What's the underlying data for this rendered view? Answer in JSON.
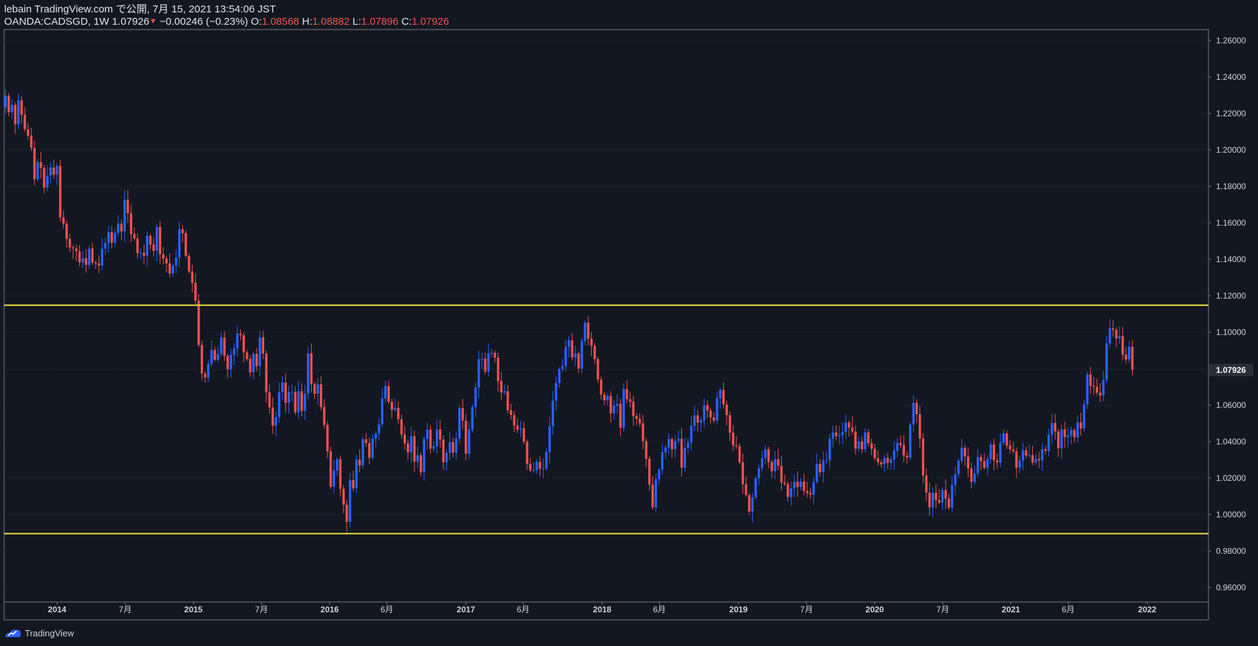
{
  "header": {
    "published": "lebain TradingView.com で公開, 7月 15, 2021 13:54:06 JST",
    "symbol": "OANDA:CADSGD, 1W",
    "last": "1.07926",
    "change": "−0.00246 (−0.23%)",
    "o_label": "O:",
    "o_value": "1.08568",
    "h_label": "H:",
    "h_value": "1.08882",
    "l_label": "L:",
    "l_value": "1.07896",
    "c_label": "C:",
    "c_value": "1.07926"
  },
  "footer": {
    "brand": "TradingView"
  },
  "colors": {
    "bg": "#131722",
    "up": "#2962ff",
    "down": "#ef5350",
    "level": "#f0e442",
    "border": "#787b86"
  },
  "chart_data": {
    "type": "candlestick",
    "symbol": "OANDA:CADSGD",
    "interval": "1W",
    "ylim": [
      0.952,
      1.266
    ],
    "y_ticks": [
      "1.26000",
      "1.24000",
      "1.22000",
      "1.20000",
      "1.18000",
      "1.16000",
      "1.14000",
      "1.12000",
      "1.10000",
      "1.08000",
      "1.06000",
      "1.04000",
      "1.02000",
      "1.00000",
      "0.98000",
      "0.96000"
    ],
    "x_ticks": [
      {
        "label": "2014",
        "t": 2013.99
      },
      {
        "label": "7月",
        "t": 2014.49
      },
      {
        "label": "2015",
        "t": 2014.99
      },
      {
        "label": "7月",
        "t": 2015.49
      },
      {
        "label": "2016",
        "t": 2015.99
      },
      {
        "label": "6月",
        "t": 2016.41
      },
      {
        "label": "2017",
        "t": 2016.99
      },
      {
        "label": "6月",
        "t": 2017.41
      },
      {
        "label": "2018",
        "t": 2017.99
      },
      {
        "label": "6月",
        "t": 2018.41
      },
      {
        "label": "2019",
        "t": 2018.99
      },
      {
        "label": "7月",
        "t": 2019.49
      },
      {
        "label": "2020",
        "t": 2019.99
      },
      {
        "label": "7月",
        "t": 2020.49
      },
      {
        "label": "2021",
        "t": 2020.99
      },
      {
        "label": "6月",
        "t": 2021.41
      },
      {
        "label": "2022",
        "t": 2021.99
      }
    ],
    "horizontal_levels": [
      1.1148,
      0.9895
    ],
    "last_price": 1.07926,
    "last_price_label": "1.07926",
    "weekly_closes": [
      1.2296,
      1.2207,
      1.2247,
      1.2141,
      1.2272,
      1.2193,
      1.2113,
      1.2078,
      1.2012,
      1.1839,
      1.1932,
      1.1902,
      1.1793,
      1.1858,
      1.1903,
      1.1865,
      1.1912,
      1.1629,
      1.1595,
      1.1512,
      1.1465,
      1.1459,
      1.1444,
      1.1383,
      1.1406,
      1.1369,
      1.1459,
      1.1382,
      1.1377,
      1.1366,
      1.1458,
      1.1489,
      1.1549,
      1.1491,
      1.1545,
      1.1595,
      1.1553,
      1.1726,
      1.1652,
      1.1538,
      1.1514,
      1.1433,
      1.1436,
      1.1419,
      1.1529,
      1.1481,
      1.1447,
      1.1577,
      1.1428,
      1.1404,
      1.1377,
      1.1322,
      1.1365,
      1.1409,
      1.1565,
      1.1543,
      1.1419,
      1.1333,
      1.1271,
      1.1173,
      1.093,
      1.0773,
      1.0751,
      1.0827,
      1.0903,
      1.0849,
      1.088,
      1.0971,
      1.087,
      1.0796,
      1.0876,
      1.0911,
      1.0992,
      1.0984,
      1.0889,
      1.0853,
      1.078,
      1.0881,
      1.0814,
      1.0972,
      1.0883,
      1.067,
      1.0587,
      1.0487,
      1.0534,
      1.0671,
      1.0724,
      1.0613,
      1.0672,
      1.0672,
      1.056,
      1.0676,
      1.0568,
      1.0663,
      1.0884,
      1.0715,
      1.0663,
      1.0714,
      1.0589,
      1.0491,
      1.0347,
      1.0152,
      1.0241,
      1.0303,
      1.0141,
      1.0053,
      0.996,
      1.0188,
      1.0144,
      1.0301,
      1.0269,
      1.0413,
      1.0392,
      1.0311,
      1.0416,
      1.0444,
      1.0494,
      1.0637,
      1.0704,
      1.0618,
      1.0573,
      1.0585,
      1.0522,
      1.0439,
      1.039,
      1.0341,
      1.0429,
      1.029,
      1.0325,
      1.0232,
      1.0414,
      1.0465,
      1.0361,
      1.0374,
      1.0466,
      1.0411,
      1.0286,
      1.0338,
      1.0396,
      1.0339,
      1.0416,
      1.0584,
      1.0515,
      1.0333,
      1.0466,
      1.0589,
      1.0696,
      1.0852,
      1.0855,
      1.0784,
      1.0884,
      1.0887,
      1.086,
      1.0732,
      1.0669,
      1.0676,
      1.0572,
      1.0546,
      1.0488,
      1.0466,
      1.0473,
      1.04,
      1.0278,
      1.0243,
      1.0244,
      1.0288,
      1.0251,
      1.0251,
      1.0343,
      1.0484,
      1.0624,
      1.0721,
      1.0797,
      1.0815,
      1.0919,
      1.0955,
      1.0862,
      1.0883,
      1.08,
      1.0952,
      1.1052,
      1.0964,
      1.0925,
      1.0852,
      1.074,
      1.0658,
      1.0627,
      1.065,
      1.0555,
      1.0597,
      1.0607,
      1.0476,
      1.0688,
      1.0632,
      1.0618,
      1.0539,
      1.0525,
      1.05,
      1.0402,
      1.0305,
      1.0163,
      1.0039,
      1.0194,
      1.0245,
      1.0341,
      1.0368,
      1.0414,
      1.0358,
      1.0404,
      1.0415,
      1.0257,
      1.0366,
      1.0394,
      1.0486,
      1.0544,
      1.0504,
      1.0517,
      1.0599,
      1.057,
      1.0532,
      1.0515,
      1.0639,
      1.0683,
      1.0603,
      1.0545,
      1.0449,
      1.0379,
      1.0374,
      1.0286,
      1.0166,
      1.0107,
      1.0016,
      1.0093,
      1.0199,
      1.0254,
      1.0309,
      1.0357,
      1.0288,
      1.0238,
      1.0303,
      1.0268,
      1.0175,
      1.0167,
      1.0096,
      1.0143,
      1.0179,
      1.0151,
      1.018,
      1.013,
      1.0118,
      1.0109,
      1.0179,
      1.0277,
      1.0233,
      1.0296,
      1.0297,
      1.0416,
      1.045,
      1.0431,
      1.0436,
      1.0452,
      1.0504,
      1.0477,
      1.0455,
      1.0361,
      1.04,
      1.0358,
      1.045,
      1.0392,
      1.036,
      1.0309,
      1.0287,
      1.0275,
      1.031,
      1.0283,
      1.0302,
      1.035,
      1.0392,
      1.0382,
      1.0323,
      1.0312,
      1.0493,
      1.0612,
      1.055,
      1.0418,
      1.0214,
      1.012,
      1.0039,
      1.0119,
      1.0079,
      1.0066,
      1.0134,
      1.0088,
      1.0038,
      1.0162,
      1.0221,
      1.0295,
      1.0366,
      1.0318,
      1.0253,
      1.0179,
      1.0224,
      1.0315,
      1.0292,
      1.0256,
      1.0304,
      1.0384,
      1.0297,
      1.0286,
      1.0394,
      1.0445,
      1.0378,
      1.0357,
      1.0346,
      1.0257,
      1.0295,
      1.0352,
      1.0323,
      1.0326,
      1.0285,
      1.0304,
      1.0297,
      1.0358,
      1.0349,
      1.0438,
      1.0502,
      1.0455,
      1.0363,
      1.0467,
      1.0424,
      1.0434,
      1.0463,
      1.0423,
      1.0505,
      1.0472,
      1.0604,
      1.0768,
      1.0706,
      1.0701,
      1.0668,
      1.0653,
      1.0738,
      1.0939,
      1.1021,
      1.1013,
      1.0966,
      1.0978,
      1.0877,
      1.0851,
      1.092,
      1.0793
    ]
  }
}
